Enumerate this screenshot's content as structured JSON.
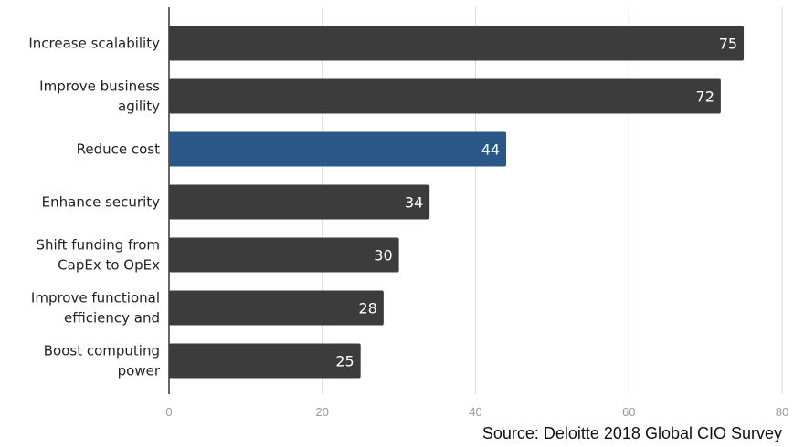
{
  "chart_data": {
    "type": "bar",
    "orientation": "horizontal",
    "categories": [
      [
        "Increase scalability"
      ],
      [
        "Improve business",
        "agility"
      ],
      [
        "Reduce cost"
      ],
      [
        "Enhance security"
      ],
      [
        "Shift funding from",
        "CapEx to OpEx"
      ],
      [
        "Improve functional",
        "efficiency and"
      ],
      [
        "Boost computing",
        "power"
      ]
    ],
    "values": [
      75,
      72,
      44,
      34,
      30,
      28,
      25
    ],
    "highlight_index": 2,
    "xlim": [
      0,
      80
    ],
    "xticks": [
      0,
      20,
      40,
      60,
      80
    ],
    "grid": true,
    "bar_color": "#3c3c3c",
    "highlight_color": "#2a5788",
    "grid_color": "#d9d9d9",
    "title": "",
    "xlabel": "",
    "ylabel": ""
  },
  "source_note": "Source: Deloitte 2018 Global CIO Survey"
}
